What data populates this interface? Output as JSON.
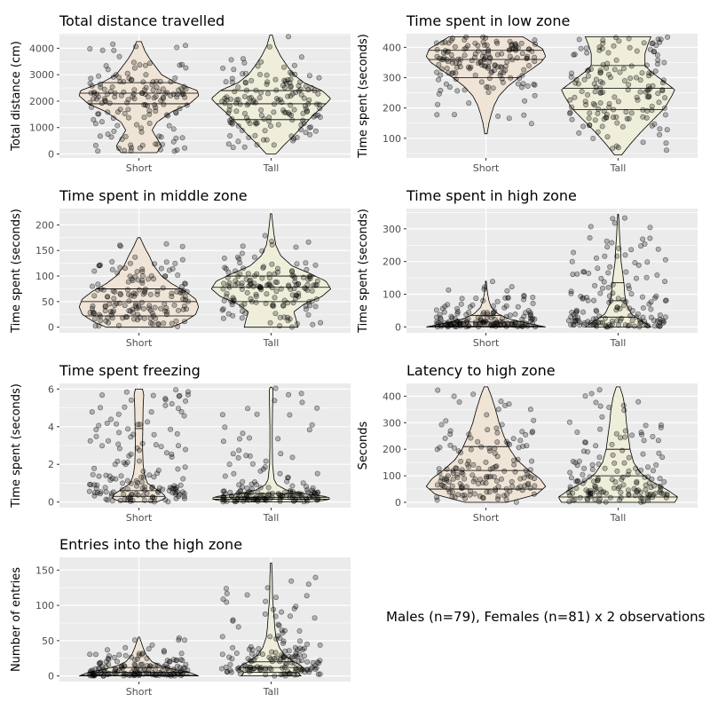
{
  "note": "Males (n=79), Females (n=81) x 2 observations",
  "colors": {
    "panel_bg": "#ebebeb",
    "grid": "#ffffff",
    "violin_short": "#efe4d6",
    "violin_tall": "#efeeda",
    "point": "#000000"
  },
  "chart_data": [
    {
      "type": "violin",
      "title": "Total distance travelled",
      "ylabel": "Total distance (cm)",
      "categories": [
        "Short",
        "Tall"
      ],
      "yticks": [
        0,
        1000,
        2000,
        3000,
        4000
      ],
      "ylim": [
        -150,
        4550
      ],
      "points_per_group": 160,
      "quartiles": {
        "Short": [
          1900,
          2300,
          2700
        ],
        "Tall": [
          1300,
          1900,
          2400
        ]
      },
      "range": {
        "Short": [
          50,
          4250
        ],
        "Tall": [
          0,
          4500
        ]
      },
      "density": {
        "Short": [
          [
            50,
            0.3
          ],
          [
            300,
            0.38
          ],
          [
            600,
            0.3
          ],
          [
            900,
            0.22
          ],
          [
            1200,
            0.3
          ],
          [
            1600,
            0.55
          ],
          [
            1900,
            0.85
          ],
          [
            2200,
            1.0
          ],
          [
            2400,
            0.98
          ],
          [
            2700,
            0.62
          ],
          [
            3000,
            0.38
          ],
          [
            3300,
            0.28
          ],
          [
            3600,
            0.18
          ],
          [
            3900,
            0.1
          ],
          [
            4250,
            0.04
          ]
        ],
        "Tall": [
          [
            0,
            0.08
          ],
          [
            300,
            0.2
          ],
          [
            700,
            0.38
          ],
          [
            1100,
            0.55
          ],
          [
            1500,
            0.72
          ],
          [
            1900,
            0.92
          ],
          [
            2100,
            1.0
          ],
          [
            2400,
            0.85
          ],
          [
            2700,
            0.55
          ],
          [
            3000,
            0.38
          ],
          [
            3300,
            0.28
          ],
          [
            3700,
            0.16
          ],
          [
            4100,
            0.07
          ],
          [
            4500,
            0.02
          ]
        ]
      }
    },
    {
      "type": "violin",
      "title": "Time spent in low zone",
      "ylabel": "Time spent (seconds)",
      "categories": [
        "Short",
        "Tall"
      ],
      "yticks": [
        100,
        200,
        300,
        400
      ],
      "ylim": [
        35,
        445
      ],
      "points_per_group": 160,
      "quartiles": {
        "Short": [
          300,
          360,
          390
        ],
        "Tall": [
          195,
          265,
          340
        ]
      },
      "range": {
        "Short": [
          115,
          435
        ],
        "Tall": [
          45,
          435
        ]
      },
      "density": {
        "Short": [
          [
            115,
            0.02
          ],
          [
            150,
            0.05
          ],
          [
            180,
            0.09
          ],
          [
            210,
            0.14
          ],
          [
            240,
            0.22
          ],
          [
            270,
            0.36
          ],
          [
            300,
            0.55
          ],
          [
            330,
            0.78
          ],
          [
            350,
            0.92
          ],
          [
            370,
            1.0
          ],
          [
            395,
            0.95
          ],
          [
            415,
            0.78
          ],
          [
            435,
            0.62
          ]
        ],
        "Tall": [
          [
            45,
            0.06
          ],
          [
            80,
            0.2
          ],
          [
            120,
            0.38
          ],
          [
            160,
            0.58
          ],
          [
            200,
            0.78
          ],
          [
            240,
            0.9
          ],
          [
            260,
            0.95
          ],
          [
            290,
            0.75
          ],
          [
            320,
            0.55
          ],
          [
            340,
            0.45
          ],
          [
            380,
            0.45
          ],
          [
            410,
            0.5
          ],
          [
            435,
            0.55
          ]
        ]
      }
    },
    {
      "type": "violin",
      "title": "Time spent in middle zone",
      "ylabel": "Time spent (seconds)",
      "categories": [
        "Short",
        "Tall"
      ],
      "yticks": [
        0,
        50,
        100,
        150,
        200
      ],
      "ylim": [
        -11,
        232
      ],
      "points_per_group": 160,
      "quartiles": {
        "Short": [
          22,
          50,
          75
        ],
        "Tall": [
          50,
          78,
          100
        ]
      },
      "range": {
        "Short": [
          0,
          175
        ],
        "Tall": [
          0,
          222
        ]
      },
      "density": {
        "Short": [
          [
            0,
            0.55
          ],
          [
            10,
            0.75
          ],
          [
            25,
            0.95
          ],
          [
            40,
            1.0
          ],
          [
            55,
            0.95
          ],
          [
            70,
            0.78
          ],
          [
            85,
            0.55
          ],
          [
            100,
            0.38
          ],
          [
            120,
            0.25
          ],
          [
            140,
            0.17
          ],
          [
            155,
            0.1
          ],
          [
            175,
            0.02
          ]
        ],
        "Tall": [
          [
            0,
            0.45
          ],
          [
            15,
            0.42
          ],
          [
            30,
            0.38
          ],
          [
            45,
            0.55
          ],
          [
            60,
            0.85
          ],
          [
            75,
            1.0
          ],
          [
            90,
            0.92
          ],
          [
            105,
            0.65
          ],
          [
            120,
            0.35
          ],
          [
            140,
            0.16
          ],
          [
            160,
            0.08
          ],
          [
            180,
            0.05
          ],
          [
            200,
            0.03
          ],
          [
            222,
            0.01
          ]
        ]
      }
    },
    {
      "type": "violin",
      "title": "Time spent in high zone",
      "ylabel": "Time spent (seconds)",
      "categories": [
        "Short",
        "Tall"
      ],
      "yticks": [
        0,
        100,
        200,
        300
      ],
      "ylim": [
        -18,
        362
      ],
      "points_per_group": 160,
      "quartiles": {
        "Short": [
          2,
          15,
          35
        ],
        "Tall": [
          30,
          80,
          135
        ]
      },
      "range": {
        "Short": [
          0,
          140
        ],
        "Tall": [
          0,
          345
        ]
      },
      "density": {
        "Short": [
          [
            0,
            1.0
          ],
          [
            10,
            0.72
          ],
          [
            25,
            0.38
          ],
          [
            40,
            0.2
          ],
          [
            60,
            0.09
          ],
          [
            80,
            0.05
          ],
          [
            100,
            0.03
          ],
          [
            120,
            0.015
          ],
          [
            140,
            0.005
          ]
        ],
        "Tall": [
          [
            0,
            0.55
          ],
          [
            20,
            0.38
          ],
          [
            40,
            0.22
          ],
          [
            70,
            0.14
          ],
          [
            100,
            0.11
          ],
          [
            130,
            0.1
          ],
          [
            160,
            0.08
          ],
          [
            200,
            0.05
          ],
          [
            240,
            0.04
          ],
          [
            280,
            0.025
          ],
          [
            320,
            0.015
          ],
          [
            345,
            0.005
          ]
        ]
      }
    },
    {
      "type": "violin",
      "title": "Time spent freezing",
      "ylabel": "Time spent (seconds)",
      "categories": [
        "Short",
        "Tall"
      ],
      "yticks": [
        0,
        2,
        4,
        6
      ],
      "ylim": [
        -0.3,
        6.3
      ],
      "points_per_group": 160,
      "quartiles": {
        "Short": [
          0.3,
          0.6,
          3.9
        ],
        "Tall": [
          0.15,
          0.25,
          0.45
        ]
      },
      "range": {
        "Short": [
          0,
          6
        ],
        "Tall": [
          0,
          6.1
        ]
      },
      "density": {
        "Short": [
          [
            0,
            0.3
          ],
          [
            0.2,
            0.45
          ],
          [
            0.4,
            0.42
          ],
          [
            0.7,
            0.28
          ],
          [
            1.0,
            0.14
          ],
          [
            1.5,
            0.09
          ],
          [
            2.0,
            0.07
          ],
          [
            3.0,
            0.06
          ],
          [
            4.0,
            0.065
          ],
          [
            5.0,
            0.07
          ],
          [
            5.7,
            0.08
          ],
          [
            6.0,
            0.06
          ]
        ],
        "Tall": [
          [
            0,
            0.6
          ],
          [
            0.1,
            0.95
          ],
          [
            0.2,
            1.0
          ],
          [
            0.3,
            0.9
          ],
          [
            0.4,
            0.62
          ],
          [
            0.6,
            0.28
          ],
          [
            0.9,
            0.1
          ],
          [
            1.2,
            0.05
          ],
          [
            2.0,
            0.025
          ],
          [
            3.0,
            0.02
          ],
          [
            4.0,
            0.02
          ],
          [
            5.0,
            0.025
          ],
          [
            6.0,
            0.03
          ],
          [
            6.1,
            0.01
          ]
        ]
      }
    },
    {
      "type": "violin",
      "title": "Latency to high zone",
      "ylabel": "Seconds",
      "categories": [
        "Short",
        "Tall"
      ],
      "yticks": [
        0,
        100,
        200,
        300,
        400
      ],
      "ylim": [
        -20,
        448
      ],
      "points_per_group": 160,
      "quartiles": {
        "Short": [
          50,
          120,
          210
        ],
        "Tall": [
          20,
          100,
          200
        ]
      },
      "range": {
        "Short": [
          0,
          435
        ],
        "Tall": [
          0,
          435
        ]
      },
      "density": {
        "Short": [
          [
            0,
            0.35
          ],
          [
            30,
            0.85
          ],
          [
            60,
            1.0
          ],
          [
            90,
            0.9
          ],
          [
            120,
            0.72
          ],
          [
            160,
            0.52
          ],
          [
            200,
            0.4
          ],
          [
            250,
            0.3
          ],
          [
            300,
            0.22
          ],
          [
            350,
            0.16
          ],
          [
            400,
            0.09
          ],
          [
            435,
            0.03
          ]
        ],
        "Tall": [
          [
            0,
            0.95
          ],
          [
            20,
            1.0
          ],
          [
            50,
            0.8
          ],
          [
            80,
            0.55
          ],
          [
            110,
            0.38
          ],
          [
            150,
            0.26
          ],
          [
            200,
            0.2
          ],
          [
            250,
            0.17
          ],
          [
            300,
            0.14
          ],
          [
            350,
            0.12
          ],
          [
            400,
            0.08
          ],
          [
            435,
            0.03
          ]
        ]
      }
    },
    {
      "type": "violin",
      "title": "Entries into the high zone",
      "ylabel": "Number of entries",
      "categories": [
        "Short",
        "Tall"
      ],
      "yticks": [
        0,
        50,
        100,
        150
      ],
      "ylim": [
        -8,
        168
      ],
      "points_per_group": 160,
      "quartiles": {
        "Short": [
          1,
          5,
          12
        ],
        "Tall": [
          5,
          12,
          20
        ]
      },
      "range": {
        "Short": [
          0,
          55
        ],
        "Tall": [
          0,
          160
        ]
      },
      "density": {
        "Short": [
          [
            0,
            1.0
          ],
          [
            5,
            0.85
          ],
          [
            10,
            0.55
          ],
          [
            15,
            0.35
          ],
          [
            20,
            0.22
          ],
          [
            30,
            0.12
          ],
          [
            40,
            0.07
          ],
          [
            50,
            0.03
          ],
          [
            55,
            0.01
          ]
        ],
        "Tall": [
          [
            0,
            0.5
          ],
          [
            5,
            0.45
          ],
          [
            10,
            0.55
          ],
          [
            15,
            0.5
          ],
          [
            20,
            0.38
          ],
          [
            30,
            0.22
          ],
          [
            40,
            0.14
          ],
          [
            55,
            0.08
          ],
          [
            70,
            0.06
          ],
          [
            90,
            0.045
          ],
          [
            110,
            0.025
          ],
          [
            140,
            0.02
          ],
          [
            160,
            0.01
          ]
        ]
      }
    }
  ]
}
